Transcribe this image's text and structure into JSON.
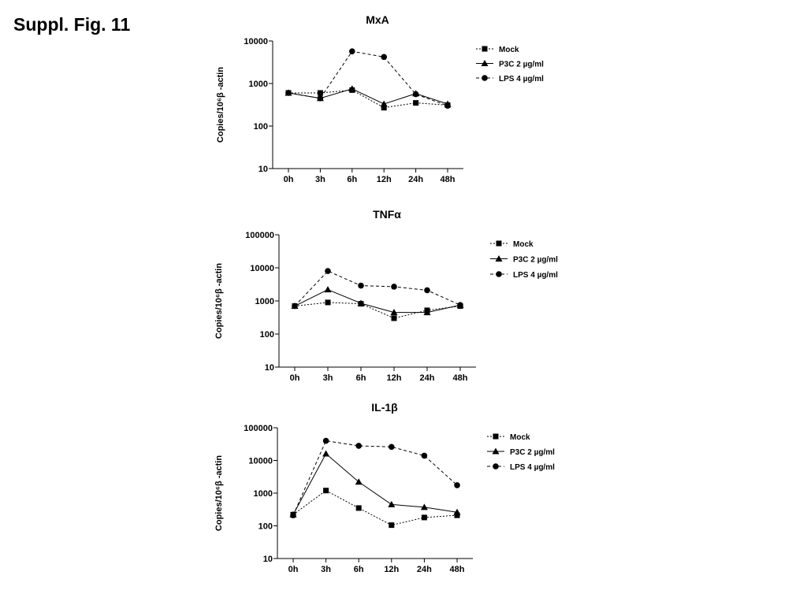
{
  "figure_label": "Suppl. Fig. 11",
  "chart_data": [
    {
      "type": "line",
      "title": "MxA",
      "ylabel": "Copies/10⁶β -actin",
      "yscale": "log",
      "ylim": [
        10,
        10000
      ],
      "yticks": [
        "10",
        "100",
        "1000",
        "10000"
      ],
      "categories": [
        "0h",
        "3h",
        "6h",
        "12h",
        "24h",
        "48h"
      ],
      "legend_position": "top-right",
      "series": [
        {
          "name": "Mock",
          "marker": "square",
          "values": [
            600,
            600,
            700,
            270,
            350,
            310
          ]
        },
        {
          "name": "P3C 2 µg/ml",
          "marker": "triangle",
          "values": [
            600,
            450,
            750,
            330,
            580,
            330
          ]
        },
        {
          "name": "LPS 4 µg/ml",
          "marker": "circle",
          "values": [
            600,
            450,
            5700,
            4200,
            560,
            300
          ]
        }
      ]
    },
    {
      "type": "line",
      "title": "TNFα",
      "ylabel": "Copies/10⁶β -actin",
      "yscale": "log",
      "ylim": [
        10,
        100000
      ],
      "yticks": [
        "10",
        "100",
        "1000",
        "10000",
        "100000"
      ],
      "categories": [
        "0h",
        "3h",
        "6h",
        "12h",
        "24h",
        "48h"
      ],
      "legend_position": "top-right",
      "series": [
        {
          "name": "Mock",
          "marker": "square",
          "values": [
            700,
            900,
            820,
            300,
            520,
            700
          ]
        },
        {
          "name": "P3C 2 µg/ml",
          "marker": "triangle",
          "values": [
            700,
            2200,
            850,
            450,
            450,
            750
          ]
        },
        {
          "name": "LPS 4 µg/ml",
          "marker": "circle",
          "values": [
            700,
            8000,
            2900,
            2700,
            2100,
            750
          ]
        }
      ]
    },
    {
      "type": "line",
      "title": "IL-1β",
      "ylabel": "Copies/10⁶β -actin",
      "yscale": "log",
      "ylim": [
        10,
        100000
      ],
      "yticks": [
        "10",
        "100",
        "1000",
        "10000",
        "100000"
      ],
      "categories": [
        "0h",
        "3h",
        "6h",
        "12h",
        "24h",
        "48h"
      ],
      "legend_position": "top-right",
      "series": [
        {
          "name": "Mock",
          "marker": "square",
          "values": [
            220,
            1200,
            350,
            105,
            180,
            210
          ]
        },
        {
          "name": "P3C 2 µg/ml",
          "marker": "triangle",
          "values": [
            220,
            16000,
            2200,
            450,
            370,
            260
          ]
        },
        {
          "name": "LPS 4 µg/ml",
          "marker": "circle",
          "values": [
            210,
            40000,
            28000,
            26000,
            14000,
            1750
          ]
        }
      ]
    }
  ]
}
